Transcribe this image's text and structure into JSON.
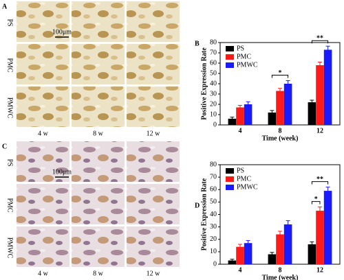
{
  "panels": [
    {
      "letter": "A",
      "rows": [
        "PS",
        "PMC",
        "PMWC"
      ],
      "columns": [
        "4 w",
        "8 w",
        "12 w"
      ],
      "scale_bar": "100μm"
    },
    {
      "letter": "C",
      "rows": [
        "PS",
        "PMC",
        "PMWC"
      ],
      "columns": [
        "4 w",
        "8 w",
        "12 w"
      ],
      "scale_bar": "100μm"
    }
  ],
  "chart_data": [
    {
      "type": "bar",
      "panel": "B",
      "x_label": "Time (week)",
      "y_label": "Positive Expression Rate",
      "categories": [
        "4",
        "8",
        "12"
      ],
      "series": [
        {
          "name": "PS",
          "color": "#000000",
          "values": [
            6,
            12,
            22
          ],
          "errors": [
            1.5,
            2,
            2
          ]
        },
        {
          "name": "PMC",
          "color": "#ff1a1a",
          "values": [
            17,
            33,
            58
          ],
          "errors": [
            2,
            2.5,
            3
          ]
        },
        {
          "name": "PMWC",
          "color": "#1a1aff",
          "values": [
            20,
            40,
            73
          ],
          "errors": [
            2.5,
            3,
            3.5
          ]
        }
      ],
      "ylim": [
        0,
        80
      ],
      "yticks": [
        0,
        10,
        20,
        30,
        40,
        50,
        60,
        70,
        80
      ],
      "legend": "top-left",
      "annotations": [
        {
          "text": "*",
          "at": "8",
          "between": [
            "PS",
            "PMWC"
          ]
        },
        {
          "text": "**",
          "at": "12",
          "between": [
            "PS",
            "PMWC"
          ]
        }
      ]
    },
    {
      "type": "bar",
      "panel": "D",
      "x_label": "Time (week)",
      "y_label": "Positive Expression Rate",
      "categories": [
        "4",
        "8",
        "12"
      ],
      "series": [
        {
          "name": "PS",
          "color": "#000000",
          "values": [
            3,
            8,
            16
          ],
          "errors": [
            1,
            1.5,
            2
          ]
        },
        {
          "name": "PMC",
          "color": "#ff1a1a",
          "values": [
            14,
            24,
            43
          ],
          "errors": [
            2,
            2.5,
            3
          ]
        },
        {
          "name": "PMWC",
          "color": "#1a1aff",
          "values": [
            17,
            32,
            59
          ],
          "errors": [
            2,
            3,
            3
          ]
        }
      ],
      "ylim": [
        0,
        80
      ],
      "yticks": [
        0,
        10,
        20,
        30,
        40,
        50,
        60,
        70,
        80
      ],
      "legend": "top-left",
      "annotations": [
        {
          "text": "*",
          "at": "12",
          "between": [
            "PS",
            "PMC"
          ]
        },
        {
          "text": "**",
          "at": "12",
          "between": [
            "PS",
            "PMWC"
          ]
        }
      ]
    }
  ]
}
